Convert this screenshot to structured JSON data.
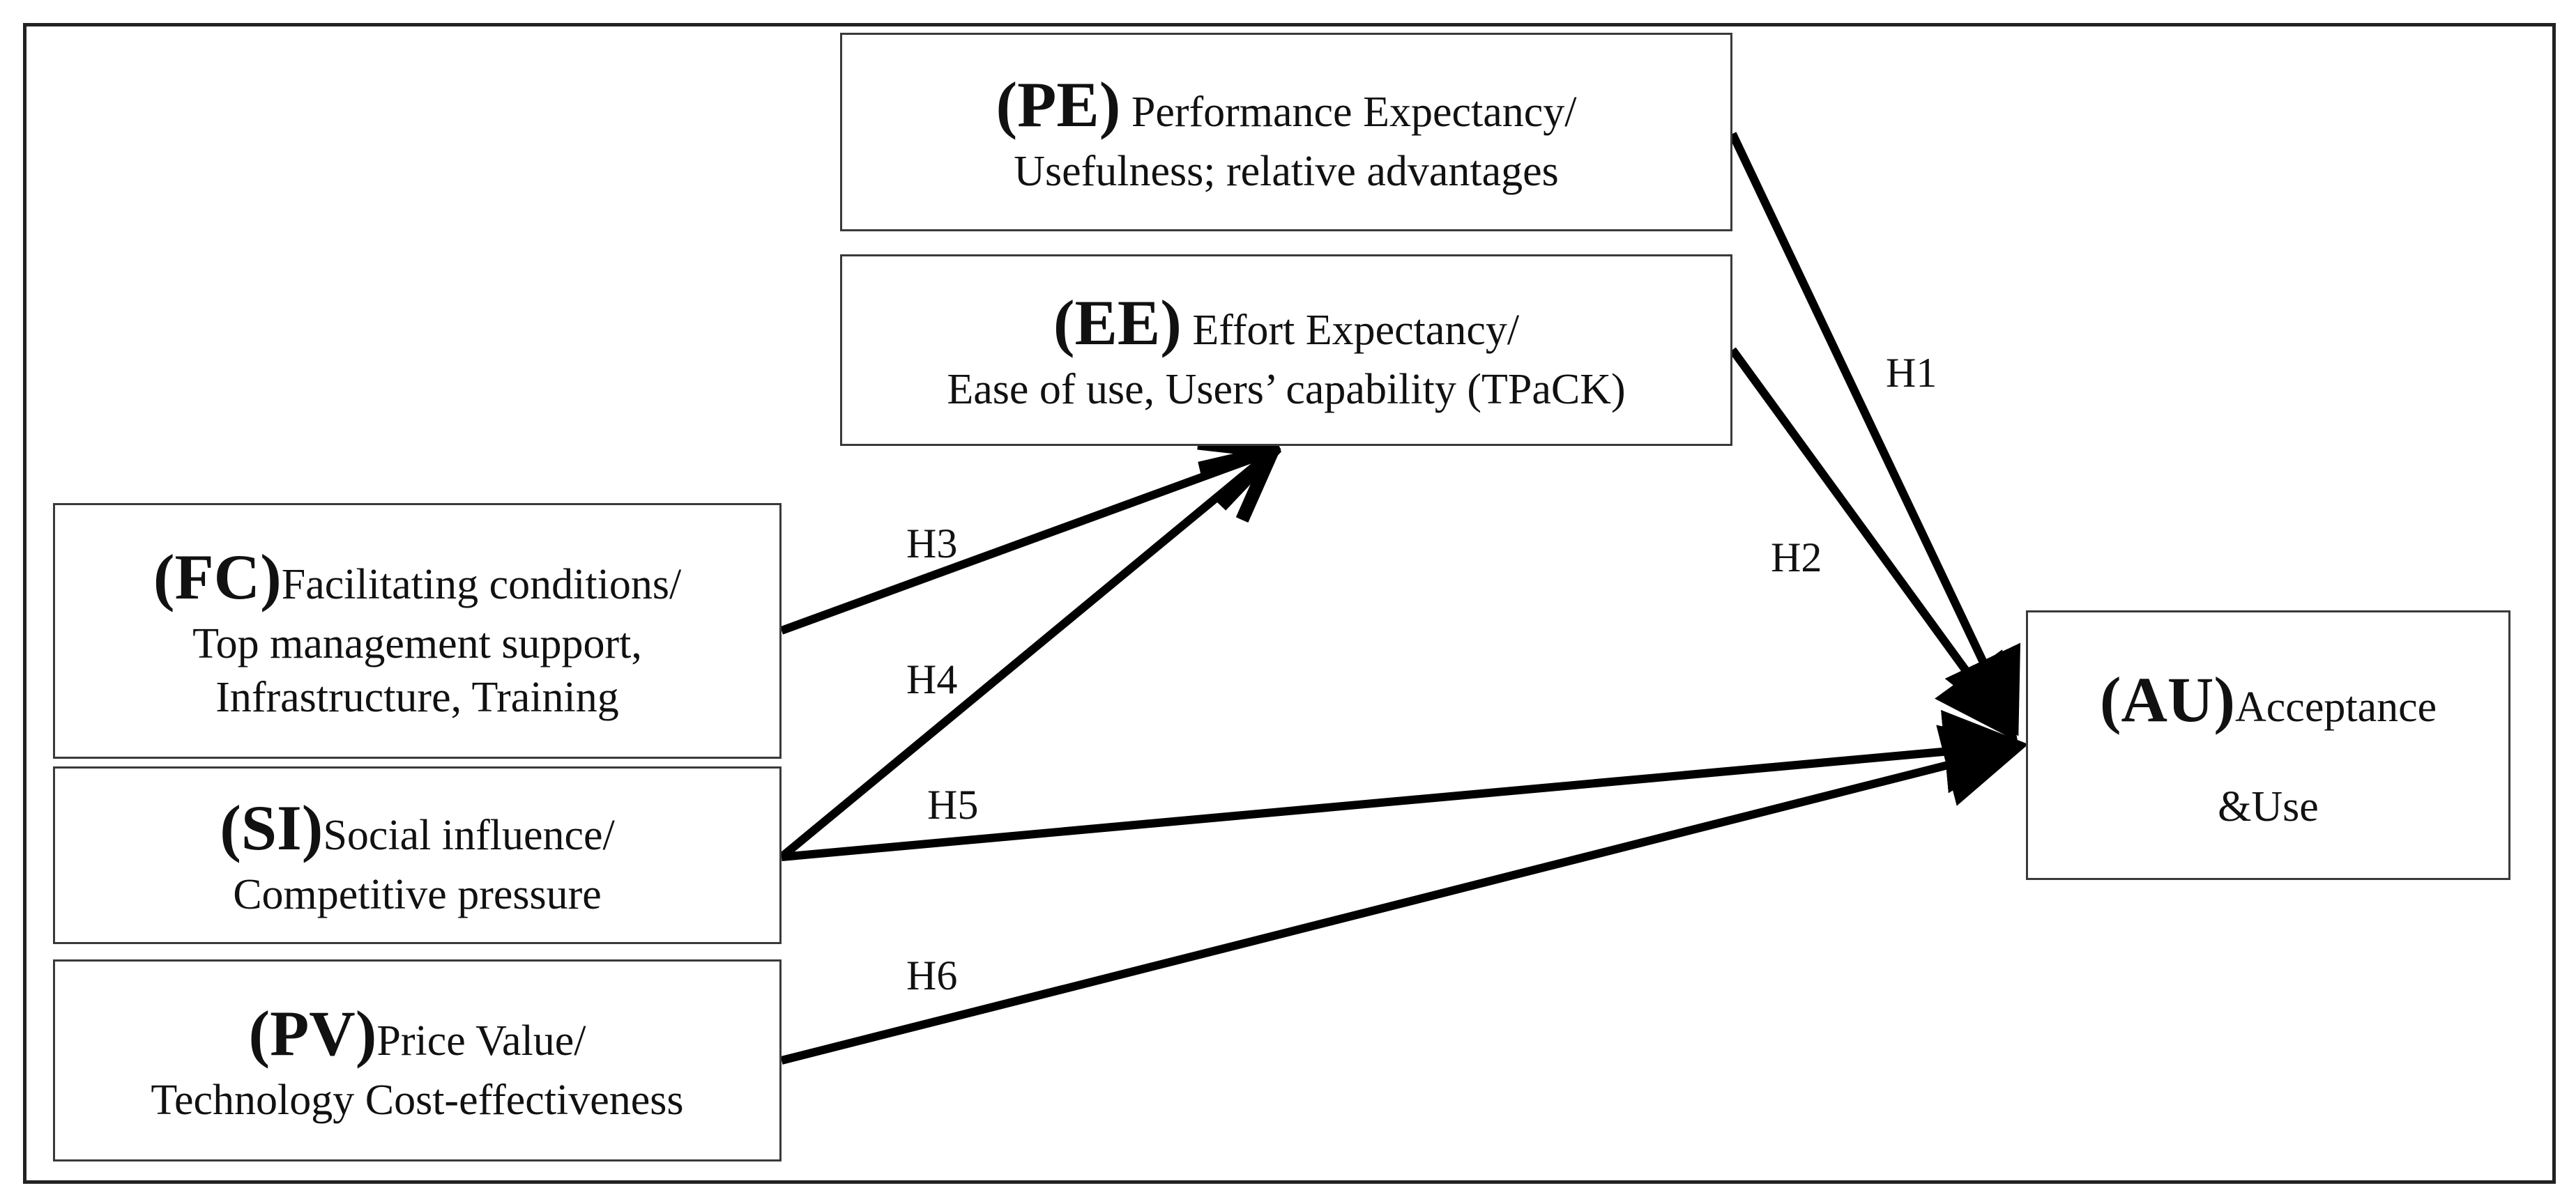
{
  "boxes": {
    "pe": {
      "code": "(PE)",
      "line1": "Performance Expectancy/",
      "line2": "Usefulness; relative advantages"
    },
    "ee": {
      "code": "(EE)",
      "line1": "Effort Expectancy/",
      "line2": "Ease of use, Users’ capability (TPaCK)"
    },
    "fc": {
      "code": "(FC)",
      "line1": "Facilitating conditions/",
      "line2": "Top management support,",
      "line3": "Infrastructure, Training"
    },
    "si": {
      "code": "(SI)",
      "line1": "Social influence/",
      "line2": "Competitive pressure"
    },
    "pv": {
      "code": "(PV)",
      "line1": "Price Value/",
      "line2": "Technology Cost-effectiveness"
    },
    "au": {
      "code": "(AU)",
      "line1": "Acceptance",
      "line2": "&Use"
    }
  },
  "hypotheses": {
    "h1": "H1",
    "h2": "H2",
    "h3": "H3",
    "h4": "H4",
    "h5": "H5",
    "h6": "H6"
  }
}
